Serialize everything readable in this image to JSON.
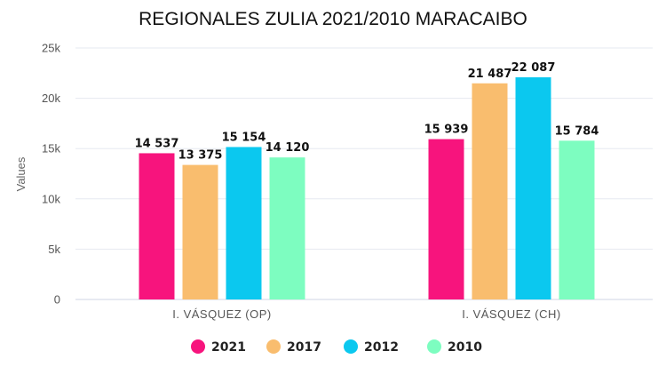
{
  "chart_data": {
    "type": "bar",
    "title": "REGIONALES ZULIA 2021/2010 MARACAIBO",
    "xlabel": "",
    "ylabel": "Values",
    "categories": [
      "I. VÁSQUEZ (OP)",
      "I. VÁSQUEZ (CH)"
    ],
    "series": [
      {
        "name": "2021",
        "values": [
          14537,
          15939
        ],
        "labels": [
          "14 537",
          "15 939"
        ],
        "color": "#f7147d"
      },
      {
        "name": "2017",
        "values": [
          13375,
          21487
        ],
        "labels": [
          "13 375",
          "21 487"
        ],
        "color": "#f9bd6e"
      },
      {
        "name": "2012",
        "values": [
          15154,
          22087
        ],
        "labels": [
          "15 154",
          "22 087"
        ],
        "color": "#0bc8ef"
      },
      {
        "name": "2010",
        "values": [
          14120,
          15784
        ],
        "labels": [
          "14 120",
          "15 784"
        ],
        "color": "#7dfdc0"
      }
    ],
    "ylim": [
      0,
      25000
    ],
    "yticks": [
      0,
      5000,
      10000,
      15000,
      20000,
      25000
    ],
    "ytick_labels": [
      "0",
      "5k",
      "10k",
      "15k",
      "20k",
      "25k"
    ],
    "grid": true,
    "legend_position": "bottom"
  }
}
